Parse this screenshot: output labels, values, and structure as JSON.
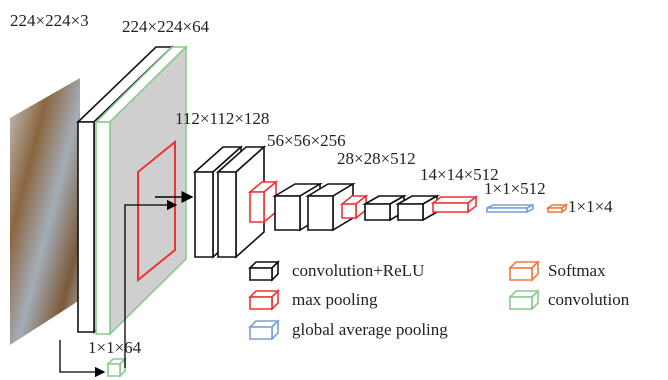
{
  "labels": {
    "input": "224×224×3",
    "conv1": "224×224×64",
    "conv2": "112×112×128",
    "conv3": "56×56×256",
    "conv4": "28×28×512",
    "conv5": "14×14×512",
    "gap": "1×1×512",
    "out": "1×1×4",
    "branch": "1×1×64"
  },
  "legend": [
    "convolution+ReLU",
    "max pooling",
    "global average pooling",
    "Softmax",
    "convolution"
  ]
}
